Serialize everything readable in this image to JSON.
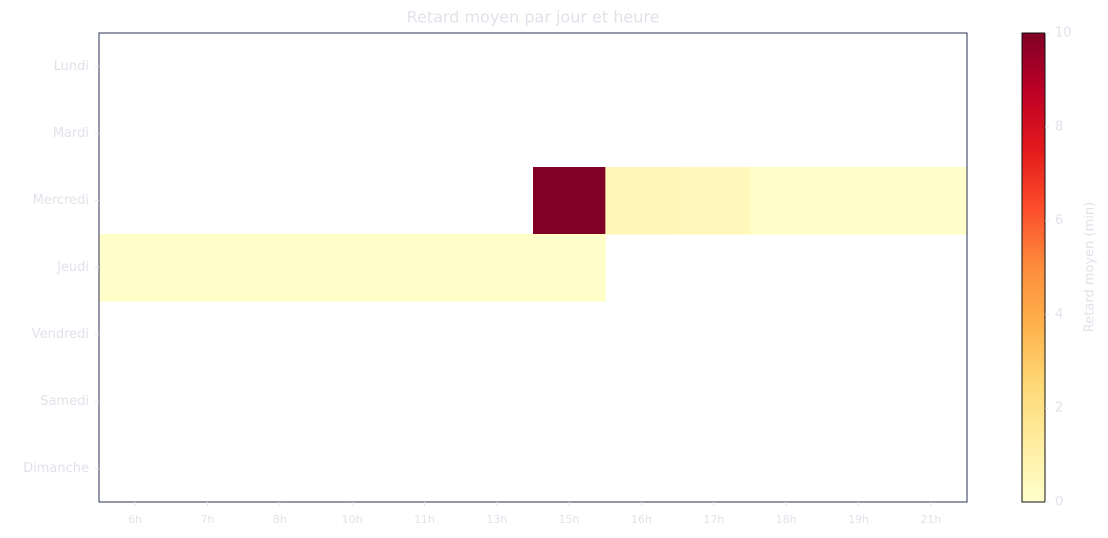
{
  "chart_data": {
    "type": "heatmap",
    "title": "Retard moyen par jour et heure",
    "x": [
      "6h",
      "7h",
      "8h",
      "10h",
      "11h",
      "13h",
      "15h",
      "16h",
      "17h",
      "18h",
      "19h",
      "21h"
    ],
    "y": [
      "Lundi",
      "Mardi",
      "Mercredi",
      "Jeudi",
      "Vendredi",
      "Samedi",
      "Dimanche"
    ],
    "values": [
      [
        null,
        null,
        null,
        null,
        null,
        null,
        null,
        null,
        null,
        null,
        null,
        null
      ],
      [
        null,
        null,
        null,
        null,
        null,
        null,
        null,
        null,
        null,
        null,
        null,
        null
      ],
      [
        null,
        null,
        null,
        null,
        null,
        null,
        10,
        0.6,
        0.5,
        0.1,
        0.1,
        0.1
      ],
      [
        0.1,
        0.1,
        0.1,
        0.1,
        0.1,
        0.1,
        0.1,
        null,
        null,
        null,
        null,
        null
      ],
      [
        null,
        null,
        null,
        null,
        null,
        null,
        null,
        null,
        null,
        null,
        null,
        null
      ],
      [
        null,
        null,
        null,
        null,
        null,
        null,
        null,
        null,
        null,
        null,
        null,
        null
      ],
      [
        null,
        null,
        null,
        null,
        null,
        null,
        null,
        null,
        null,
        null,
        null,
        null
      ]
    ],
    "colormap": "YlOrRd",
    "clim": [
      0,
      10
    ],
    "cticks": [
      0,
      2,
      4,
      6,
      8,
      10
    ],
    "colorbar_label": "Retard moyen (min)"
  }
}
